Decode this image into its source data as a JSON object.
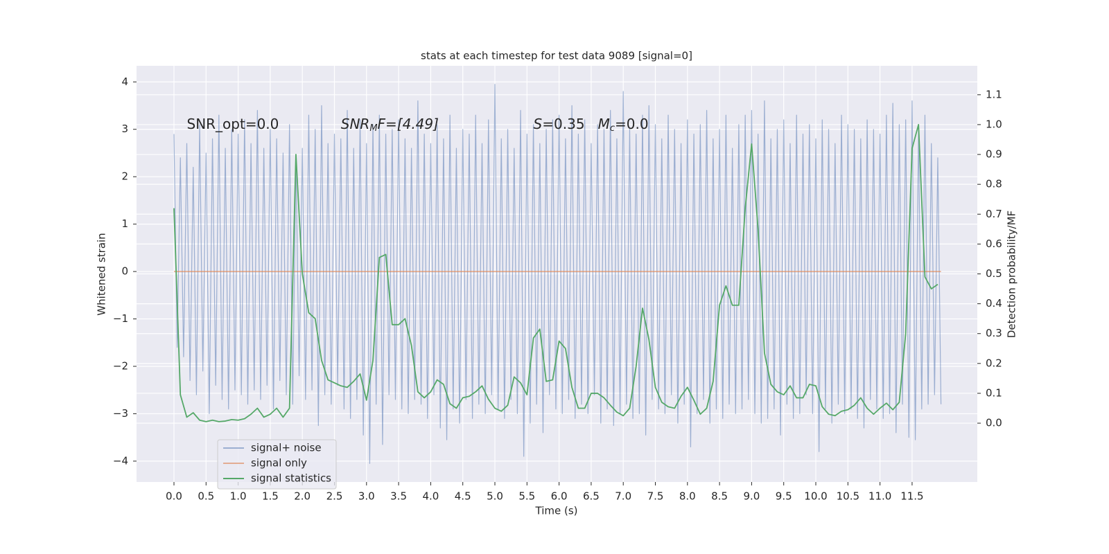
{
  "chart_data": {
    "type": "line",
    "title": "stats at each timestep for test data 9089 [signal=0]",
    "xlabel": "Time (s)",
    "ylabel": "Whitened strain",
    "y2label": "Detection probability/MF",
    "grid": true,
    "legend": "lower left",
    "xlim": [
      -0.583,
      12.516
    ],
    "ylim": [
      -4.44,
      4.34
    ],
    "y2lim": [
      -0.197,
      1.197
    ],
    "xticks": [
      {
        "value": 0,
        "label": "0.0"
      },
      0.5,
      {
        "value": 1,
        "label": "1.0"
      },
      1.5,
      {
        "value": 2,
        "label": "2.0"
      },
      2.5,
      {
        "value": 3,
        "label": "3.0"
      },
      3.5,
      {
        "value": 4,
        "label": "4.0"
      },
      4.5,
      {
        "value": 5,
        "label": "5.0"
      },
      5.5,
      {
        "value": 6,
        "label": "6.0"
      },
      6.5,
      {
        "value": 7,
        "label": "7.0"
      },
      7.5,
      {
        "value": 8,
        "label": "8.0"
      },
      8.5,
      {
        "value": 9,
        "label": "9.0"
      },
      9.5,
      {
        "value": 10,
        "label": "10.0"
      },
      10.5,
      {
        "value": 11,
        "label": "11.0"
      },
      11.5
    ],
    "yticks": [
      {
        "value": -4,
        "label": "−4"
      },
      {
        "value": -3,
        "label": "−3"
      },
      {
        "value": -2,
        "label": "−2"
      },
      {
        "value": -1,
        "label": "−1"
      },
      0,
      1,
      2,
      3,
      4
    ],
    "y2ticks": [
      {
        "value": 0,
        "label": "0.0"
      },
      0.1,
      0.2,
      0.3,
      0.4,
      0.5,
      0.6,
      0.7,
      0.8,
      0.9,
      {
        "value": 1,
        "label": "1.0"
      },
      1.1
    ],
    "annotations": [
      {
        "x": 0.2,
        "y": 3.1,
        "parts": [
          "SNR_opt=0.0"
        ]
      },
      {
        "x": 2.6,
        "y": 3.1,
        "parts": [
          "SNR",
          "M",
          "F=[4.49]"
        ]
      },
      {
        "x": 5.6,
        "y": 3.1,
        "parts": [
          "S",
          "=0.35   ",
          "M",
          "c",
          "=0.0"
        ]
      }
    ],
    "series": [
      {
        "name": "signal+ noise",
        "color": "#4c72b0",
        "alpha": 0.5,
        "x": [
          0,
          0.05,
          0.1,
          0.15,
          0.2,
          0.25,
          0.3,
          0.35,
          0.4,
          0.45,
          0.5,
          0.55,
          0.6,
          0.65,
          0.7,
          0.75,
          0.8,
          0.85,
          0.9,
          0.95,
          1,
          1.05,
          1.1,
          1.15,
          1.2,
          1.25,
          1.3,
          1.35,
          1.4,
          1.45,
          1.5,
          1.55,
          1.6,
          1.65,
          1.7,
          1.75,
          1.8,
          1.85,
          1.9,
          1.95,
          2,
          2.05,
          2.1,
          2.15,
          2.2,
          2.25,
          2.3,
          2.35,
          2.4,
          2.45,
          2.5,
          2.55,
          2.6,
          2.65,
          2.7,
          2.75,
          2.8,
          2.85,
          2.9,
          2.95,
          3,
          3.05,
          3.1,
          3.15,
          3.2,
          3.25,
          3.3,
          3.35,
          3.4,
          3.45,
          3.5,
          3.55,
          3.6,
          3.65,
          3.7,
          3.75,
          3.8,
          3.85,
          3.9,
          3.95,
          4,
          4.05,
          4.1,
          4.15,
          4.2,
          4.25,
          4.3,
          4.35,
          4.4,
          4.45,
          4.5,
          4.55,
          4.6,
          4.65,
          4.7,
          4.75,
          4.8,
          4.85,
          4.9,
          4.95,
          5,
          5.05,
          5.1,
          5.15,
          5.2,
          5.25,
          5.3,
          5.35,
          5.4,
          5.45,
          5.5,
          5.55,
          5.6,
          5.65,
          5.7,
          5.75,
          5.8,
          5.85,
          5.9,
          5.95,
          6,
          6.05,
          6.1,
          6.15,
          6.2,
          6.25,
          6.3,
          6.35,
          6.4,
          6.45,
          6.5,
          6.55,
          6.6,
          6.65,
          6.7,
          6.75,
          6.8,
          6.85,
          6.9,
          6.95,
          7,
          7.05,
          7.1,
          7.15,
          7.2,
          7.25,
          7.3,
          7.35,
          7.4,
          7.45,
          7.5,
          7.55,
          7.6,
          7.65,
          7.7,
          7.75,
          7.8,
          7.85,
          7.9,
          7.95,
          8,
          8.05,
          8.1,
          8.15,
          8.2,
          8.25,
          8.3,
          8.35,
          8.4,
          8.45,
          8.5,
          8.55,
          8.6,
          8.65,
          8.7,
          8.75,
          8.8,
          8.85,
          8.9,
          8.95,
          9,
          9.05,
          9.1,
          9.15,
          9.2,
          9.25,
          9.3,
          9.35,
          9.4,
          9.45,
          9.5,
          9.55,
          9.6,
          9.65,
          9.7,
          9.75,
          9.8,
          9.85,
          9.9,
          9.95,
          10,
          10.05,
          10.1,
          10.15,
          10.2,
          10.25,
          10.3,
          10.35,
          10.4,
          10.45,
          10.5,
          10.55,
          10.6,
          10.65,
          10.7,
          10.75,
          10.8,
          10.85,
          10.9,
          10.95,
          11,
          11.05,
          11.1,
          11.15,
          11.2,
          11.25,
          11.3,
          11.35,
          11.4,
          11.45,
          11.5,
          11.55,
          11.6,
          11.65,
          11.7,
          11.75,
          11.8,
          11.85,
          11.9,
          11.95
        ],
        "values": [
          2.9,
          -1.6,
          2.4,
          -1.8,
          2.7,
          -2.3,
          2.2,
          -2.6,
          3.1,
          -2.1,
          2.5,
          -3.0,
          2.8,
          -2.4,
          3.3,
          -2.7,
          2.6,
          -2.9,
          3.0,
          -2.5,
          2.9,
          -2.6,
          3.2,
          -2.8,
          2.7,
          -2.5,
          3.4,
          -2.7,
          2.6,
          -2.4,
          3.0,
          -2.9,
          2.8,
          -2.3,
          2.5,
          -2.6,
          3.1,
          -2.8,
          2.4,
          -2.2,
          2.6,
          -2.7,
          3.3,
          -2.5,
          3.0,
          -3.25,
          3.5,
          -2.6,
          2.7,
          -2.8,
          2.9,
          -2.4,
          2.8,
          -2.9,
          3.4,
          -3.1,
          2.6,
          -2.7,
          3.2,
          -3.45,
          2.7,
          -4.05,
          3.1,
          -2.8,
          3.3,
          -3.65,
          2.9,
          -2.6,
          3.0,
          -2.7,
          3.2,
          -2.9,
          2.8,
          -3.0,
          2.6,
          -2.7,
          3.6,
          -2.8,
          2.9,
          -3.1,
          2.7,
          -2.6,
          3.1,
          -3.3,
          2.8,
          -3.55,
          3.3,
          -2.9,
          2.6,
          -3.2,
          3.0,
          -2.7,
          2.9,
          -3.1,
          3.3,
          -2.8,
          2.7,
          -3.0,
          3.2,
          -2.6,
          3.95,
          -2.9,
          2.8,
          -3.1,
          3.0,
          -2.7,
          2.6,
          -3.0,
          3.4,
          -3.9,
          2.9,
          -3.2,
          3.1,
          -2.8,
          2.7,
          -3.4,
          3.0,
          -2.6,
          3.2,
          -2.9,
          3.3,
          -3.0,
          2.8,
          -2.7,
          3.5,
          -3.1,
          2.9,
          -2.8,
          3.2,
          -3.0,
          2.7,
          -2.6,
          3.1,
          -3.2,
          3.0,
          -2.9,
          3.4,
          -3.25,
          2.8,
          -3.0,
          3.8,
          -2.8,
          3.0,
          -3.1,
          2.9,
          -3.0,
          3.3,
          -3.45,
          3.5,
          -2.7,
          3.1,
          -2.9,
          2.8,
          -3.0,
          3.3,
          -2.6,
          3.0,
          -3.2,
          2.7,
          -2.8,
          3.2,
          -3.7,
          2.9,
          -3.0,
          3.1,
          -2.7,
          3.4,
          -3.2,
          2.8,
          -2.9,
          3.0,
          -3.1,
          3.3,
          -2.8,
          2.6,
          -3.0,
          3.1,
          -2.9,
          3.3,
          -2.7,
          3.4,
          -3.0,
          2.9,
          -3.2,
          3.6,
          -3.1,
          2.8,
          -2.9,
          3.0,
          -3.45,
          3.2,
          -2.8,
          2.7,
          -3.1,
          3.3,
          -3.0,
          2.9,
          -2.6,
          3.1,
          -3.0,
          2.8,
          -3.8,
          3.2,
          -2.9,
          3.0,
          -3.2,
          2.7,
          -2.8,
          3.3,
          -3.0,
          3.1,
          -2.9,
          3.0,
          -3.1,
          2.8,
          -3.3,
          3.2,
          -2.7,
          3.0,
          -2.9,
          2.9,
          -3.1,
          3.3,
          -3.0,
          3.55,
          -3.4,
          3.1,
          -2.8,
          3.2,
          -3.5,
          3.6,
          -3.55,
          3.0,
          -2.9,
          3.3,
          -2.8,
          2.7,
          -2.6,
          2.4,
          -2.8
        ]
      },
      {
        "name": "signal only",
        "color": "#dd8452",
        "alpha": 0.6,
        "x": [
          0,
          11.95
        ],
        "values": [
          0,
          0
        ]
      },
      {
        "name": "signal statistics",
        "color": "#55a868",
        "alpha": 1,
        "axis": "y2",
        "x": [
          0,
          0.1,
          0.2,
          0.3,
          0.4,
          0.5,
          0.6,
          0.7,
          0.8,
          0.9,
          1,
          1.1,
          1.2,
          1.3,
          1.4,
          1.5,
          1.6,
          1.7,
          1.8,
          1.9,
          2,
          2.1,
          2.2,
          2.3,
          2.4,
          2.5,
          2.6,
          2.7,
          2.8,
          2.9,
          3,
          3.1,
          3.2,
          3.3,
          3.4,
          3.5,
          3.6,
          3.7,
          3.8,
          3.9,
          4,
          4.1,
          4.2,
          4.3,
          4.4,
          4.5,
          4.6,
          4.7,
          4.8,
          4.9,
          5,
          5.1,
          5.2,
          5.3,
          5.4,
          5.5,
          5.6,
          5.7,
          5.8,
          5.9,
          6,
          6.1,
          6.2,
          6.3,
          6.4,
          6.5,
          6.6,
          6.7,
          6.8,
          6.9,
          7,
          7.1,
          7.2,
          7.3,
          7.4,
          7.5,
          7.6,
          7.7,
          7.8,
          7.9,
          8,
          8.1,
          8.2,
          8.3,
          8.4,
          8.5,
          8.6,
          8.7,
          8.8,
          8.9,
          9,
          9.1,
          9.2,
          9.3,
          9.4,
          9.5,
          9.6,
          9.7,
          9.8,
          9.9,
          10,
          10.1,
          10.2,
          10.3,
          10.4,
          10.5,
          10.6,
          10.7,
          10.8,
          10.9,
          11,
          11.1,
          11.2,
          11.3,
          11.4,
          11.5,
          11.6,
          11.7,
          11.8,
          11.9
        ],
        "values": [
          0.72,
          0.095,
          0.02,
          0.035,
          0.01,
          0.005,
          0.01,
          0.005,
          0.007,
          0.012,
          0.01,
          0.015,
          0.03,
          0.05,
          0.02,
          0.03,
          0.05,
          0.02,
          0.05,
          0.9,
          0.5,
          0.37,
          0.35,
          0.21,
          0.145,
          0.135,
          0.125,
          0.12,
          0.14,
          0.165,
          0.077,
          0.21,
          0.555,
          0.565,
          0.33,
          0.33,
          0.35,
          0.26,
          0.105,
          0.085,
          0.105,
          0.145,
          0.13,
          0.065,
          0.05,
          0.085,
          0.09,
          0.105,
          0.125,
          0.08,
          0.05,
          0.04,
          0.06,
          0.155,
          0.135,
          0.095,
          0.285,
          0.315,
          0.14,
          0.145,
          0.275,
          0.25,
          0.12,
          0.05,
          0.05,
          0.1,
          0.1,
          0.085,
          0.06,
          0.037,
          0.025,
          0.05,
          0.19,
          0.385,
          0.28,
          0.12,
          0.07,
          0.055,
          0.05,
          0.09,
          0.12,
          0.077,
          0.03,
          0.05,
          0.14,
          0.395,
          0.46,
          0.395,
          0.395,
          0.72,
          0.935,
          0.65,
          0.235,
          0.13,
          0.105,
          0.095,
          0.125,
          0.085,
          0.085,
          0.13,
          0.125,
          0.055,
          0.03,
          0.025,
          0.04,
          0.045,
          0.06,
          0.085,
          0.05,
          0.03,
          0.05,
          0.067,
          0.045,
          0.07,
          0.3,
          0.92,
          1.0,
          0.49,
          0.45,
          0.465
        ]
      }
    ]
  }
}
